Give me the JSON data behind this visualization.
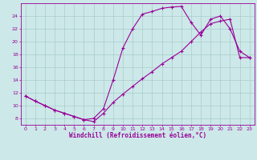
{
  "xlabel": "Windchill (Refroidissement éolien,°C)",
  "background_color": "#cce8e8",
  "grid_color": "#aacccc",
  "line_color": "#990099",
  "xlim": [
    -0.5,
    23.5
  ],
  "ylim": [
    7.0,
    26.0
  ],
  "xticks": [
    0,
    1,
    2,
    3,
    4,
    5,
    6,
    7,
    8,
    9,
    10,
    11,
    12,
    13,
    14,
    15,
    16,
    17,
    18,
    19,
    20,
    21,
    22,
    23
  ],
  "yticks": [
    8,
    10,
    12,
    14,
    16,
    18,
    20,
    22,
    24
  ],
  "curve1_x": [
    0,
    1,
    2,
    3,
    4,
    5,
    6,
    7,
    8,
    9,
    10,
    11,
    12,
    13,
    14,
    15,
    16,
    17,
    18,
    19,
    20,
    21,
    22,
    23
  ],
  "curve1_y": [
    11.5,
    10.7,
    10.0,
    9.3,
    8.8,
    8.3,
    7.8,
    8.0,
    9.5,
    14.0,
    19.0,
    22.0,
    24.3,
    24.7,
    25.2,
    25.4,
    25.5,
    23.0,
    21.0,
    23.5,
    24.0,
    22.0,
    18.5,
    17.5
  ],
  "curve2_x": [
    0,
    1,
    2,
    3,
    4,
    5,
    6,
    7,
    8,
    9,
    10,
    11,
    12,
    13,
    14,
    15,
    16,
    17,
    18,
    19,
    20,
    21,
    22,
    23
  ],
  "curve2_y": [
    11.5,
    10.7,
    10.0,
    9.3,
    8.8,
    8.3,
    7.8,
    7.5,
    8.8,
    10.5,
    11.8,
    13.0,
    14.2,
    15.3,
    16.5,
    17.5,
    18.5,
    20.0,
    21.5,
    22.8,
    23.2,
    23.5,
    17.5,
    17.5
  ]
}
